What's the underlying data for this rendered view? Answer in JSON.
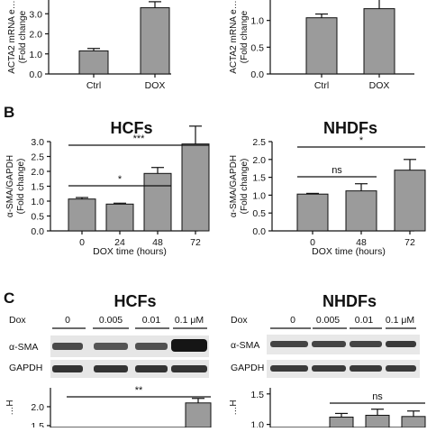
{
  "panels": {
    "B": "B",
    "C": "C"
  },
  "chart_data": [
    {
      "id": "a-left",
      "type": "bar",
      "categories": [
        "Ctrl",
        "DOX"
      ],
      "values": [
        1.15,
        3.3
      ],
      "errors": [
        0.12,
        0.3
      ],
      "ylabel": "ACTA2 mRNA e…",
      "ylabel2": "(Fold change",
      "ylim": [
        0,
        4
      ],
      "yticks": [
        "0.0",
        "1.0",
        "2.0",
        "3.0",
        "4.0"
      ]
    },
    {
      "id": "a-right",
      "type": "bar",
      "categories": [
        "Ctrl",
        "DOX"
      ],
      "values": [
        1.05,
        1.22
      ],
      "errors": [
        0.07,
        0.2
      ],
      "ylabel": "ACTA2 mRNA e…",
      "ylabel2": "(Fold change",
      "ylim": [
        0,
        1.5
      ],
      "yticks": [
        "0.0",
        "0.5",
        "1.0"
      ]
    },
    {
      "id": "b-left",
      "type": "bar",
      "title": "HCFs",
      "categories": [
        "0",
        "24",
        "48",
        "72"
      ],
      "values": [
        1.07,
        0.9,
        1.93,
        2.92
      ],
      "errors": [
        0.05,
        0.03,
        0.2,
        0.6
      ],
      "xlabel": "DOX time (hours)",
      "ylabel": "α-SMA/GAPDH",
      "ylabel2": "(Fold change)",
      "ylim": [
        0,
        3.0
      ],
      "yticks": [
        "0.0",
        "0.5",
        "1.0",
        "1.5",
        "2.0",
        "2.5",
        "3.0"
      ],
      "significance": [
        {
          "from": "0",
          "to": "72",
          "label": "***"
        },
        {
          "from": "0",
          "to": "48",
          "label": "*"
        }
      ]
    },
    {
      "id": "b-right",
      "type": "bar",
      "title": "NHDFs",
      "categories": [
        "0",
        "48",
        "72"
      ],
      "values": [
        1.03,
        1.12,
        1.7
      ],
      "errors": [
        0.02,
        0.2,
        0.3
      ],
      "xlabel": "DOX time (hours)",
      "ylabel": "α-SMA/GAPDH",
      "ylabel2": "(Fold change)",
      "ylim": [
        0,
        2.5
      ],
      "yticks": [
        "0.0",
        "0.5",
        "1.0",
        "1.5",
        "2.0",
        "2.5"
      ],
      "significance": [
        {
          "from": "0",
          "to": "72",
          "label": "*"
        },
        {
          "from": "0",
          "to": "48",
          "label": "ns"
        }
      ]
    },
    {
      "id": "c-left",
      "type": "bar",
      "categories": [
        "0",
        "0.005",
        "0.01",
        "0.1 μM"
      ],
      "values": [
        null,
        null,
        null,
        2.1
      ],
      "errors": [
        null,
        null,
        null,
        0.12
      ],
      "ylabel": "…H",
      "yticks": [
        "1.5",
        "2.0"
      ],
      "ylim": [
        1.45,
        2.5
      ],
      "significance": [
        {
          "from": "0",
          "to": "0.1 μM",
          "label": "**"
        }
      ]
    },
    {
      "id": "c-right",
      "type": "bar",
      "categories": [
        "0",
        "0.005",
        "0.01",
        "0.1 μM"
      ],
      "values": [
        null,
        1.12,
        1.15,
        1.13
      ],
      "errors": [
        null,
        0.06,
        0.1,
        0.09
      ],
      "ylabel": "…H",
      "yticks": [
        "1.0",
        "1.5"
      ],
      "ylim": [
        0.95,
        1.6
      ],
      "significance": [
        {
          "from": "0.005",
          "to": "0.1 μM",
          "label": "ns"
        }
      ]
    }
  ],
  "blots": [
    {
      "title": "HCFs",
      "dox_label": "Dox",
      "doses": [
        "0",
        "0.005",
        "0.01",
        "0.1 μM"
      ],
      "rows": [
        "α-SMA",
        "GAPDH"
      ]
    },
    {
      "title": "NHDFs",
      "dox_label": "Dox",
      "doses": [
        "0",
        "0.005",
        "0.01",
        "0.1 μM"
      ],
      "rows": [
        "α-SMA",
        "GAPDH"
      ]
    }
  ]
}
